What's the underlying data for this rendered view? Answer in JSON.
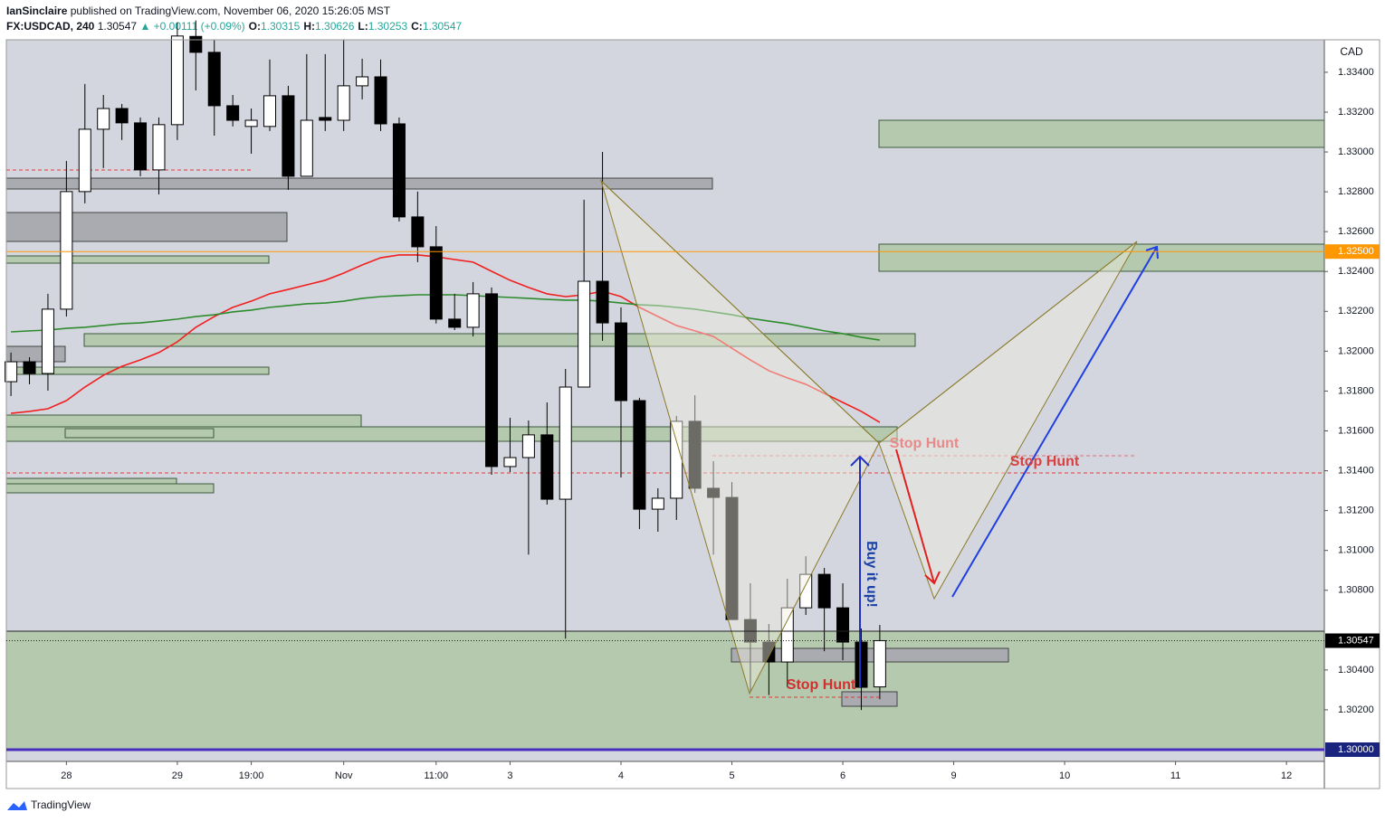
{
  "header": {
    "author": "IanSinclaire",
    "published": "published on TradingView.com, November 06, 2020 15:26:05 MST",
    "symbol": "FX:USDCAD, 240",
    "price": "1.30547",
    "change": "▲ +0.00111 (+0.09%)",
    "ohlc": [
      {
        "key": "O:",
        "value": "1.30315"
      },
      {
        "key": "H:",
        "value": "1.30626"
      },
      {
        "key": "L:",
        "value": "1.30253"
      },
      {
        "key": "C:",
        "value": "1.30547"
      }
    ]
  },
  "footer": {
    "brand": "TradingView"
  },
  "annotations": {
    "stop_hunt_1": "Stop Hunt",
    "stop_hunt_2": "Stop Hunt",
    "stop_hunt_3": "Stop Hunt",
    "buy": "Buy it up!"
  },
  "chart_data": {
    "type": "candlestick",
    "y_axis_label": "CAD",
    "open": [
      1.31847,
      1.31947,
      1.31888,
      1.32211,
      1.32801,
      1.33114,
      1.33218,
      1.33146,
      1.3291,
      1.33137,
      1.3358,
      1.335,
      1.33232,
      1.33128,
      1.33128,
      1.33282,
      1.32878,
      1.33173,
      1.33159,
      1.33332,
      1.33377,
      1.33141,
      1.32674,
      1.32524,
      1.32161,
      1.3212,
      1.32288,
      1.31421,
      1.31466,
      1.3158,
      1.31257,
      1.3182,
      1.32351,
      1.32142,
      1.31752,
      1.31207,
      1.31262,
      1.31648,
      1.31312,
      1.31266,
      1.30653,
      1.3054,
      1.3044,
      1.30712,
      1.3088,
      1.30712,
      1.3054,
      1.30315
    ],
    "high": [
      1.31993,
      1.3197,
      1.32288,
      1.32955,
      1.33341,
      1.33286,
      1.33241,
      1.33173,
      1.33173,
      1.3365,
      1.3366,
      1.33563,
      1.33286,
      1.33218,
      1.33464,
      1.33332,
      1.33491,
      1.33491,
      1.33563,
      1.33468,
      1.33464,
      1.33173,
      1.32801,
      1.32628,
      1.32288,
      1.32347,
      1.3232,
      1.31666,
      1.31652,
      1.31743,
      1.31911,
      1.3276,
      1.33,
      1.3222,
      1.31766,
      1.31312,
      1.31675,
      1.31779,
      1.31448,
      1.31343,
      1.30835,
      1.30631,
      1.30858,
      1.30971,
      1.30912,
      1.30835,
      1.30608,
      1.30626
    ],
    "low": [
      1.31775,
      1.31834,
      1.31802,
      1.32174,
      1.32742,
      1.32919,
      1.3306,
      1.32878,
      1.32787,
      1.3306,
      1.33309,
      1.33082,
      1.33128,
      1.32991,
      1.33105,
      1.3281,
      1.32878,
      1.33105,
      1.33105,
      1.33264,
      1.33105,
      1.32651,
      1.32447,
      1.32139,
      1.32106,
      1.32074,
      1.3138,
      1.31393,
      1.30979,
      1.3123,
      1.30557,
      1.3182,
      1.32052,
      1.31366,
      1.31107,
      1.31094,
      1.31153,
      1.31289,
      1.30979,
      1.30653,
      1.3029,
      1.30274,
      1.30313,
      1.30676,
      1.30494,
      1.30449,
      1.30199,
      1.30253
    ],
    "close": [
      1.31947,
      1.31888,
      1.32211,
      1.32801,
      1.33114,
      1.33218,
      1.33146,
      1.3291,
      1.33137,
      1.33582,
      1.335,
      1.33232,
      1.33159,
      1.33159,
      1.33282,
      1.32878,
      1.33159,
      1.33159,
      1.33332,
      1.33377,
      1.33141,
      1.32674,
      1.32524,
      1.32161,
      1.3212,
      1.32288,
      1.31421,
      1.31466,
      1.3158,
      1.31257,
      1.3182,
      1.32351,
      1.32142,
      1.31752,
      1.31207,
      1.31262,
      1.31648,
      1.31312,
      1.31266,
      1.30653,
      1.3054,
      1.3044,
      1.30712,
      1.3088,
      1.30712,
      1.3054,
      1.30313,
      1.30547
    ],
    "series": [
      {
        "color": "#f21f1f",
        "values": [
          1.31688,
          1.31698,
          1.31711,
          1.31752,
          1.3182,
          1.31879,
          1.31924,
          1.31956,
          1.31993,
          1.32047,
          1.3212,
          1.32174,
          1.3222,
          1.32251,
          1.32288,
          1.3231,
          1.32333,
          1.32356,
          1.32392,
          1.32433,
          1.32469,
          1.32483,
          1.32483,
          1.32474,
          1.3246,
          1.32447,
          1.32401,
          1.32356,
          1.3232,
          1.32288,
          1.32274,
          1.32283,
          1.32301,
          1.32274,
          1.3222,
          1.32174,
          1.32129,
          1.32102,
          1.32074,
          1.32015,
          1.31956,
          1.31902,
          1.31866,
          1.31834,
          1.31788,
          1.31743,
          1.31698,
          1.31643
        ]
      },
      {
        "color": "#2e8b2e",
        "values": [
          1.32097,
          1.32102,
          1.32106,
          1.32115,
          1.3212,
          1.32129,
          1.32138,
          1.32142,
          1.32151,
          1.32161,
          1.32174,
          1.32183,
          1.32197,
          1.32206,
          1.3222,
          1.32229,
          1.32238,
          1.32242,
          1.32251,
          1.32265,
          1.32274,
          1.32279,
          1.32283,
          1.32283,
          1.32283,
          1.32279,
          1.32274,
          1.3227,
          1.32265,
          1.3226,
          1.32256,
          1.32256,
          1.32251,
          1.32242,
          1.32233,
          1.32229,
          1.3222,
          1.32211,
          1.32197,
          1.32183,
          1.32165,
          1.32151,
          1.32138,
          1.3212,
          1.32102,
          1.32088,
          1.3207,
          1.32056
        ]
      }
    ],
    "xlim": [
      -0.25,
      71.05
    ],
    "xticks": [
      {
        "value": 3,
        "label": "28"
      },
      {
        "value": 9,
        "label": "29"
      },
      {
        "value": 13,
        "label": "19:00"
      },
      {
        "value": 18,
        "label": "Nov"
      },
      {
        "value": 23,
        "label": "11:00"
      },
      {
        "value": 27,
        "label": "3"
      },
      {
        "value": 33,
        "label": "4"
      },
      {
        "value": 39,
        "label": "5"
      },
      {
        "value": 45,
        "label": "6"
      },
      {
        "value": 51,
        "label": "9"
      },
      {
        "value": 57,
        "label": "10"
      },
      {
        "value": 63,
        "label": "11"
      },
      {
        "value": 69,
        "label": "12"
      }
    ],
    "ylim": [
      1.29941,
      1.33563
    ],
    "yticks": [
      {
        "value": 1.334,
        "label": "1.33400"
      },
      {
        "value": 1.332,
        "label": "1.33200"
      },
      {
        "value": 1.33,
        "label": "1.33000"
      },
      {
        "value": 1.328,
        "label": "1.32800"
      },
      {
        "value": 1.326,
        "label": "1.32600"
      },
      {
        "value": 1.324,
        "label": "1.32400"
      },
      {
        "value": 1.322,
        "label": "1.32200"
      },
      {
        "value": 1.32,
        "label": "1.32000"
      },
      {
        "value": 1.318,
        "label": "1.31800"
      },
      {
        "value": 1.316,
        "label": "1.31600"
      },
      {
        "value": 1.314,
        "label": "1.31400"
      },
      {
        "value": 1.312,
        "label": "1.31200"
      },
      {
        "value": 1.31,
        "label": "1.31000"
      },
      {
        "value": 1.308,
        "label": "1.30800"
      },
      {
        "value": 1.304,
        "label": "1.30400"
      },
      {
        "value": 1.302,
        "label": "1.30200"
      }
    ],
    "price_labels": [
      {
        "value": 1.325,
        "label": "1.32500",
        "color": "#ff9800"
      },
      {
        "value": 1.30547,
        "label": "1.30547",
        "color": "#000000"
      },
      {
        "value": 1.3,
        "label": "1.30000",
        "color": "#1a237e"
      }
    ],
    "up_color": "#ffffff",
    "down_color": "#000000"
  }
}
